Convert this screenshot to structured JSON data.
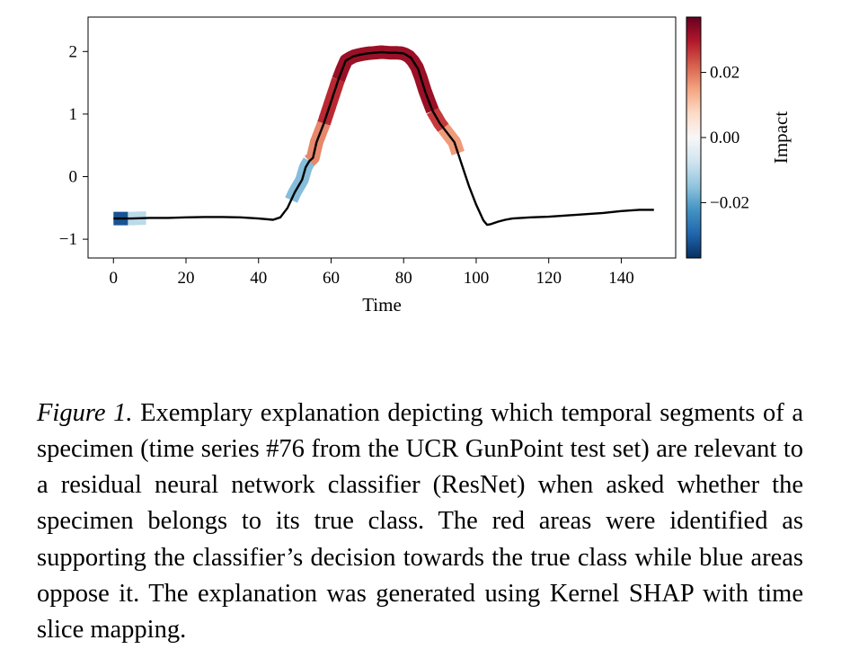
{
  "chart_data": {
    "type": "line",
    "title": "",
    "xlabel": "Time",
    "ylabel": "",
    "xlim": [
      -7,
      155
    ],
    "ylim": [
      -1.3,
      2.55
    ],
    "xticks": [
      "0",
      "20",
      "40",
      "60",
      "80",
      "100",
      "120",
      "140"
    ],
    "xtick_values": [
      0,
      20,
      40,
      60,
      80,
      100,
      120,
      140
    ],
    "yticks": [
      "−1",
      "0",
      "1",
      "2"
    ],
    "ytick_values": [
      -1,
      0,
      1,
      2
    ],
    "grid": false,
    "series": [
      {
        "name": "",
        "color": "#000000",
        "x": [
          0,
          5,
          10,
          15,
          20,
          25,
          30,
          35,
          40,
          44,
          46,
          48,
          50,
          52,
          53,
          54,
          55,
          56,
          58,
          60,
          62,
          64,
          66,
          68,
          70,
          72,
          74,
          76,
          78,
          80,
          82,
          84,
          86,
          88,
          90,
          92,
          94,
          96,
          98,
          100,
          102,
          103,
          104,
          106,
          108,
          110,
          115,
          120,
          125,
          130,
          135,
          140,
          145,
          149
        ],
        "values": [
          -0.67,
          -0.67,
          -0.66,
          -0.66,
          -0.65,
          -0.645,
          -0.645,
          -0.65,
          -0.67,
          -0.69,
          -0.65,
          -0.5,
          -0.25,
          -0.05,
          0.15,
          0.25,
          0.3,
          0.55,
          0.85,
          1.2,
          1.55,
          1.85,
          1.92,
          1.95,
          1.97,
          1.98,
          1.99,
          1.98,
          1.98,
          1.97,
          1.9,
          1.72,
          1.35,
          1.05,
          0.85,
          0.7,
          0.55,
          0.2,
          -0.15,
          -0.45,
          -0.7,
          -0.77,
          -0.76,
          -0.72,
          -0.69,
          -0.67,
          -0.65,
          -0.64,
          -0.62,
          -0.6,
          -0.58,
          -0.55,
          -0.53,
          -0.53
        ]
      }
    ],
    "impact_segments": [
      {
        "x_start": 0,
        "x_end": 4,
        "impact": -0.032
      },
      {
        "x_start": 4,
        "x_end": 9,
        "impact": -0.01
      },
      {
        "x_start": 49,
        "x_end": 54,
        "impact": -0.016
      },
      {
        "x_start": 54,
        "x_end": 58,
        "impact": 0.018
      },
      {
        "x_start": 58,
        "x_end": 62,
        "impact": 0.028
      },
      {
        "x_start": 62,
        "x_end": 88,
        "impact": 0.032
      },
      {
        "x_start": 88,
        "x_end": 91,
        "impact": 0.026
      },
      {
        "x_start": 91,
        "x_end": 95,
        "impact": 0.016
      }
    ],
    "colorbar": {
      "label": "Impact",
      "range": [
        -0.037,
        0.037
      ],
      "ticks": [
        "−0.02",
        "0.00",
        "0.02"
      ],
      "tick_values": [
        -0.02,
        0.0,
        0.02
      ],
      "colors": [
        "#053061",
        "#2166ac",
        "#4393c3",
        "#92c5de",
        "#d1e5f0",
        "#f7f7f7",
        "#fddbc7",
        "#f4a582",
        "#d6604d",
        "#b2182b",
        "#67001f"
      ]
    }
  },
  "caption": {
    "label": "Figure 1.",
    "text": " Exemplary explanation depicting which temporal segments of a specimen (time series #76 from the UCR GunPoint test set) are relevant to a residual neural network classifier (ResNet) when asked whether the specimen belongs to its true class. The red areas were identified as supporting the classifier’s decision towards the true class while blue areas oppose it. The explanation was generated using Kernel SHAP with time slice mapping."
  }
}
